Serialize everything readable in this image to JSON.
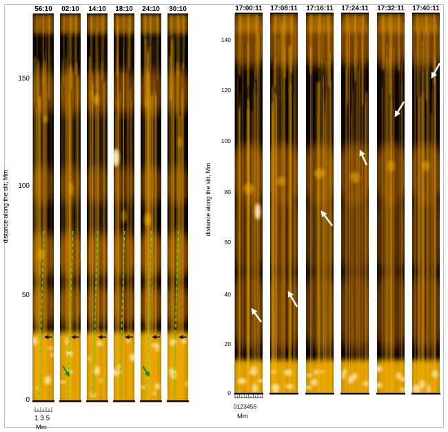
{
  "figure": {
    "left_panel": {
      "y_axis_label": "distance along the slit, Mm",
      "y_ticks": [
        "0",
        "50",
        "100",
        "150"
      ],
      "frame_times": [
        "56:10",
        "02:10",
        "14:10",
        "18:10",
        "24:10",
        "30:10"
      ],
      "x_scale_ticks": "1 3 5",
      "x_scale_unit": "Mm"
    },
    "right_panel": {
      "y_axis_label": "distance along the slit, Mm",
      "y_ticks": [
        "0",
        "20",
        "40",
        "60",
        "80",
        "100",
        "120",
        "140"
      ],
      "frame_times": [
        "17:00:11",
        "17:08:11",
        "17:16:11",
        "17:24:11",
        "17:32:11",
        "17:40:11"
      ],
      "x_scale_ticks": "0123456",
      "x_scale_unit": "Mm"
    },
    "colors": {
      "dark": "#0c0500",
      "bright": "#ffb700",
      "hot": "#fff0c0",
      "tracer": "#35e035",
      "arrow_black": "#111111",
      "arrow_white": "#ffffff"
    }
  }
}
